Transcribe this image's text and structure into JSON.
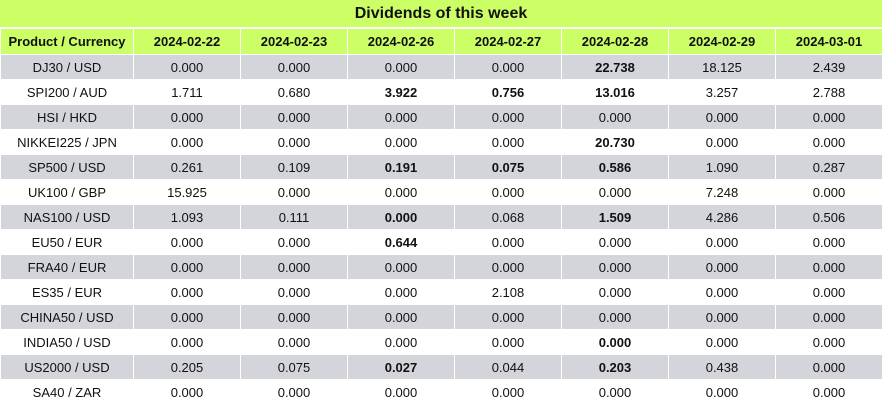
{
  "title": "Dividends of this week",
  "header": {
    "product_label": "Product / Currency",
    "dates": [
      "2024-02-22",
      "2024-02-23",
      "2024-02-26",
      "2024-02-27",
      "2024-02-28",
      "2024-02-29",
      "2024-03-01"
    ]
  },
  "rows": [
    {
      "product": "DJ30 / USD",
      "values": [
        "0.000",
        "0.000",
        "0.000",
        "0.000",
        "22.738",
        "18.125",
        "2.439"
      ],
      "bold": [
        false,
        false,
        false,
        false,
        true,
        false,
        false
      ]
    },
    {
      "product": "SPI200 / AUD",
      "values": [
        "1.711",
        "0.680",
        "3.922",
        "0.756",
        "13.016",
        "3.257",
        "2.788"
      ],
      "bold": [
        false,
        false,
        true,
        true,
        true,
        false,
        false
      ]
    },
    {
      "product": "HSI / HKD",
      "values": [
        "0.000",
        "0.000",
        "0.000",
        "0.000",
        "0.000",
        "0.000",
        "0.000"
      ],
      "bold": [
        false,
        false,
        false,
        false,
        false,
        false,
        false
      ]
    },
    {
      "product": "NIKKEI225 / JPN",
      "values": [
        "0.000",
        "0.000",
        "0.000",
        "0.000",
        "20.730",
        "0.000",
        "0.000"
      ],
      "bold": [
        false,
        false,
        false,
        false,
        true,
        false,
        false
      ]
    },
    {
      "product": "SP500 / USD",
      "values": [
        "0.261",
        "0.109",
        "0.191",
        "0.075",
        "0.586",
        "1.090",
        "0.287"
      ],
      "bold": [
        false,
        false,
        true,
        true,
        true,
        false,
        false
      ]
    },
    {
      "product": "UK100 / GBP",
      "values": [
        "15.925",
        "0.000",
        "0.000",
        "0.000",
        "0.000",
        "7.248",
        "0.000"
      ],
      "bold": [
        false,
        false,
        false,
        false,
        false,
        false,
        false
      ]
    },
    {
      "product": "NAS100 / USD",
      "values": [
        "1.093",
        "0.111",
        "0.000",
        "0.068",
        "1.509",
        "4.286",
        "0.506"
      ],
      "bold": [
        false,
        false,
        true,
        false,
        true,
        false,
        false
      ]
    },
    {
      "product": "EU50 / EUR",
      "values": [
        "0.000",
        "0.000",
        "0.644",
        "0.000",
        "0.000",
        "0.000",
        "0.000"
      ],
      "bold": [
        false,
        false,
        true,
        false,
        false,
        false,
        false
      ]
    },
    {
      "product": "FRA40 / EUR",
      "values": [
        "0.000",
        "0.000",
        "0.000",
        "0.000",
        "0.000",
        "0.000",
        "0.000"
      ],
      "bold": [
        false,
        false,
        false,
        false,
        false,
        false,
        false
      ]
    },
    {
      "product": "ES35 / EUR",
      "values": [
        "0.000",
        "0.000",
        "0.000",
        "2.108",
        "0.000",
        "0.000",
        "0.000"
      ],
      "bold": [
        false,
        false,
        false,
        false,
        false,
        false,
        false
      ]
    },
    {
      "product": "CHINA50 / USD",
      "values": [
        "0.000",
        "0.000",
        "0.000",
        "0.000",
        "0.000",
        "0.000",
        "0.000"
      ],
      "bold": [
        false,
        false,
        false,
        false,
        false,
        false,
        false
      ]
    },
    {
      "product": "INDIA50 / USD",
      "values": [
        "0.000",
        "0.000",
        "0.000",
        "0.000",
        "0.000",
        "0.000",
        "0.000"
      ],
      "bold": [
        false,
        false,
        false,
        false,
        true,
        false,
        false
      ]
    },
    {
      "product": "US2000 / USD",
      "values": [
        "0.205",
        "0.075",
        "0.027",
        "0.044",
        "0.203",
        "0.438",
        "0.000"
      ],
      "bold": [
        false,
        false,
        true,
        false,
        true,
        false,
        false
      ]
    },
    {
      "product": "SA40 / ZAR",
      "values": [
        "0.000",
        "0.000",
        "0.000",
        "0.000",
        "0.000",
        "0.000",
        "0.000"
      ],
      "bold": [
        false,
        false,
        false,
        false,
        false,
        false,
        false
      ]
    }
  ],
  "colors": {
    "header_bg": "#ccff66",
    "row_alt_bg": "#d3d5db",
    "row_bg": "#ffffff"
  }
}
